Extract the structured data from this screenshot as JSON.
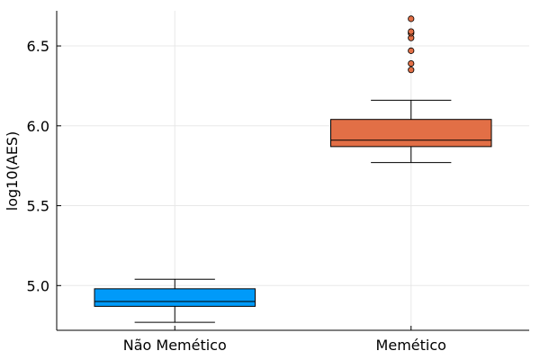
{
  "chart_data": {
    "type": "box",
    "title": "",
    "xlabel": "",
    "ylabel": "log10(AES)",
    "ylim": [
      4.72,
      6.72
    ],
    "yticks": [
      5.0,
      5.5,
      6.0,
      6.5
    ],
    "ytick_labels": [
      "5.0",
      "5.5",
      "6.0",
      "6.5"
    ],
    "grid": true,
    "legend": "none",
    "categories": [
      "Não Memético",
      "Memético"
    ],
    "boxes": [
      {
        "category": "Não Memético",
        "color": "#009AF9",
        "whisker_low": 4.77,
        "q1": 4.87,
        "median": 4.9,
        "q3": 4.98,
        "whisker_high": 5.04,
        "outliers": []
      },
      {
        "category": "Memético",
        "color": "#E26F46",
        "whisker_low": 5.77,
        "q1": 5.87,
        "median": 5.91,
        "q3": 6.04,
        "whisker_high": 6.16,
        "outliers": [
          6.35,
          6.39,
          6.47,
          6.55,
          6.58,
          6.59,
          6.67
        ]
      }
    ]
  }
}
